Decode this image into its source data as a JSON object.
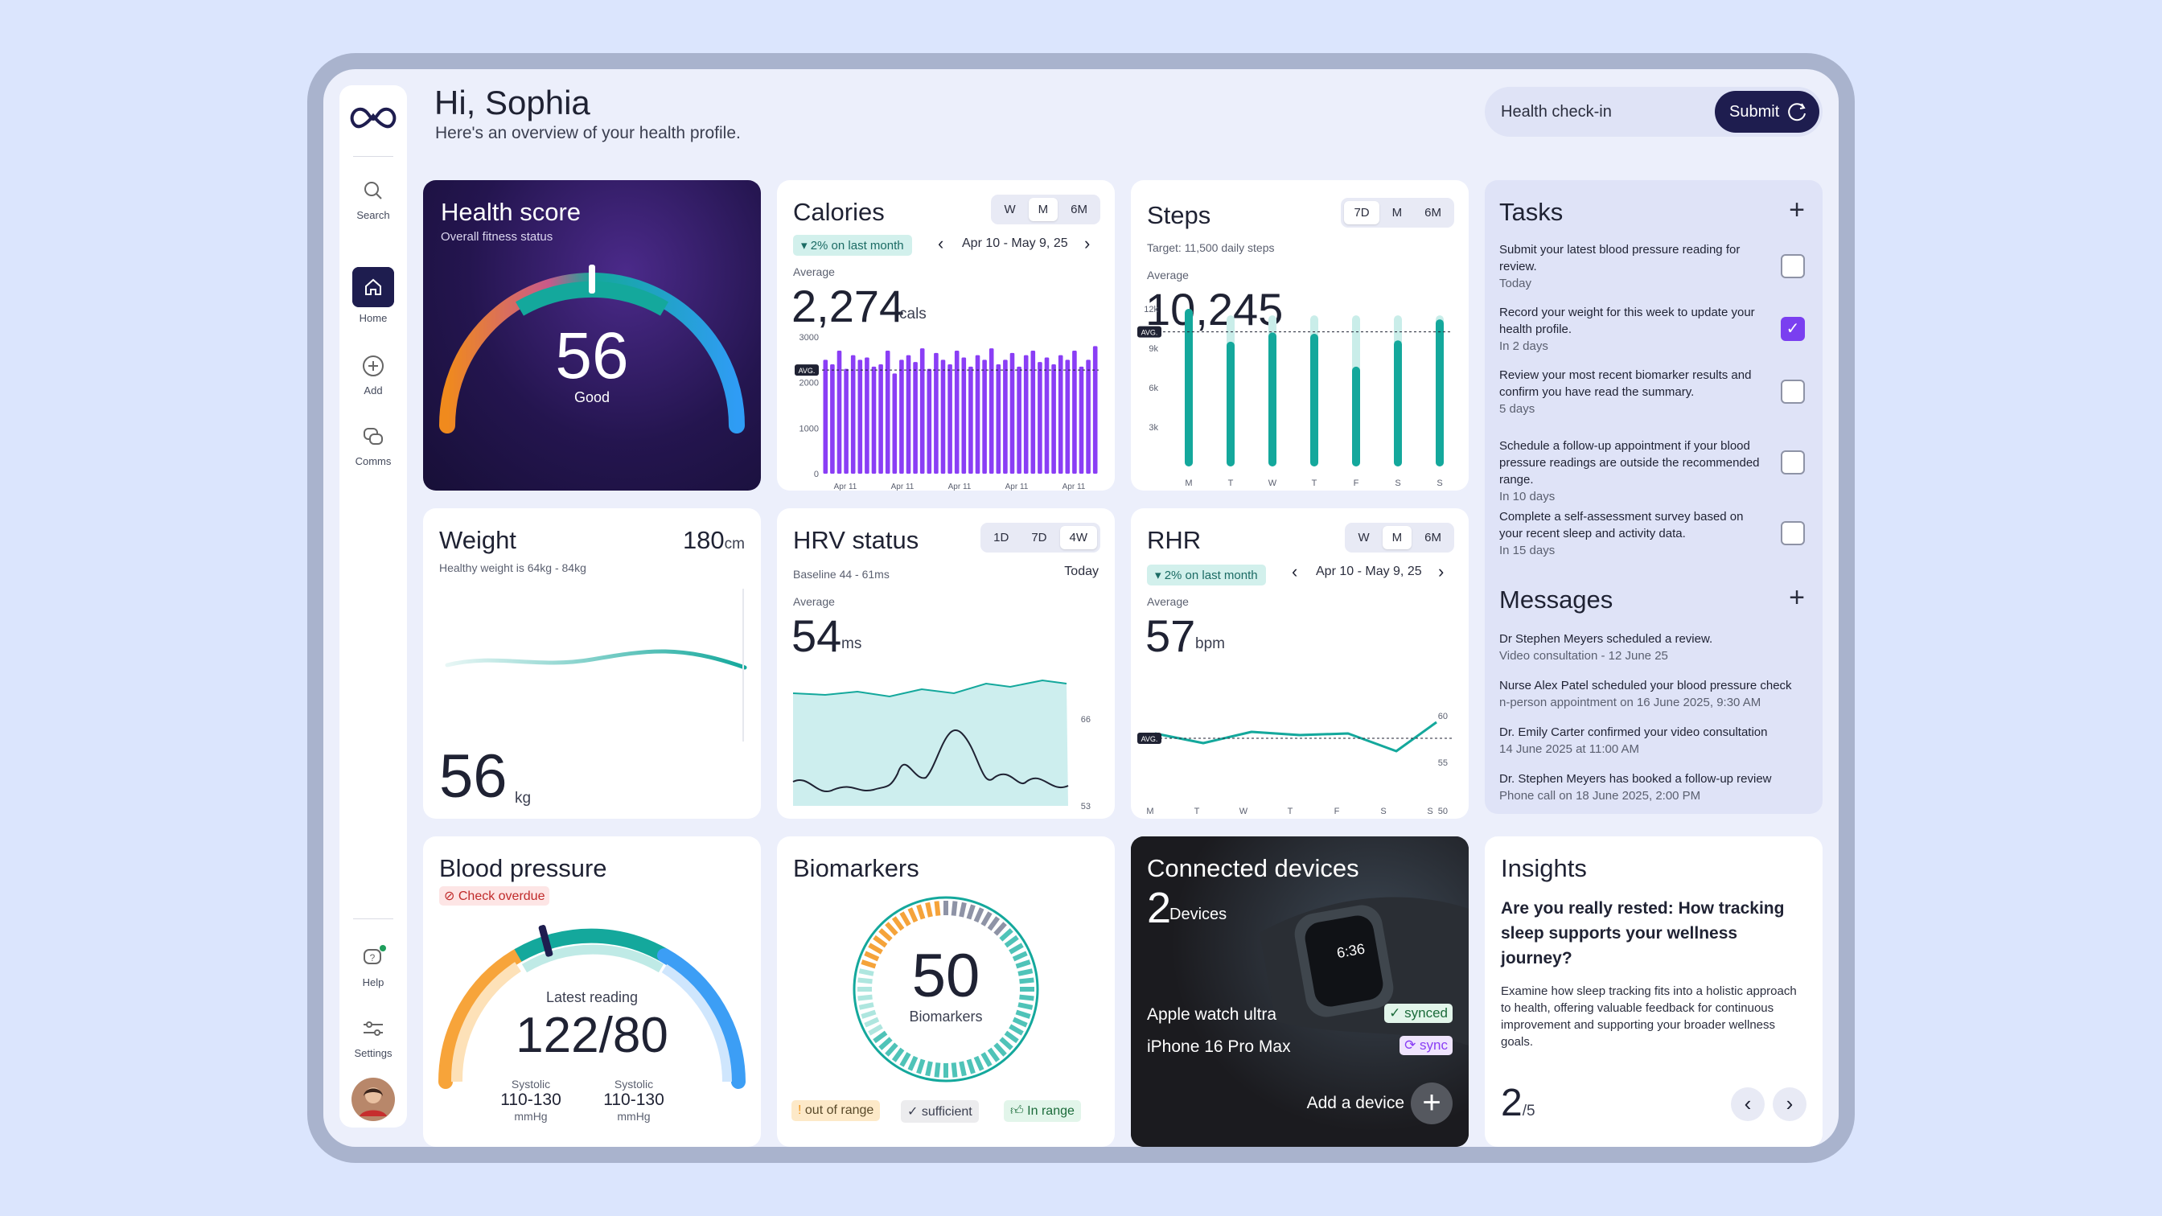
{
  "header": {
    "greeting": "Hi, Sophia",
    "subtitle": "Here's an overview of your health profile.",
    "checkin_label": "Health check-in",
    "submit_label": "Submit"
  },
  "sidebar": {
    "items": [
      {
        "label": "Search"
      },
      {
        "label": "Home"
      },
      {
        "label": "Add"
      },
      {
        "label": "Comms"
      }
    ],
    "bottom": [
      {
        "label": "Help"
      },
      {
        "label": "Settings"
      }
    ]
  },
  "health_score": {
    "title": "Health score",
    "subtitle": "Overall fitness status",
    "value": "56",
    "label": "Good",
    "level": 0.56
  },
  "calories": {
    "title": "Calories",
    "tabs": [
      "W",
      "M",
      "6M"
    ],
    "active": "M",
    "badge": "2% on last month",
    "range": "Apr 10 - May 9, 25",
    "avg_label": "Average",
    "value": "2,274",
    "unit": "cals",
    "y_ticks": [
      "3000",
      "2000",
      "1000",
      "0"
    ],
    "x_ticks": [
      "Apr 11",
      "Apr 11",
      "Apr 11",
      "Apr 11",
      "Apr 11"
    ],
    "avg_tag": "AVG."
  },
  "steps": {
    "title": "Steps",
    "tabs": [
      "7D",
      "M",
      "6M"
    ],
    "active": "7D",
    "target": "Target: 11,500 daily steps",
    "avg_label": "Average",
    "value": "10,245",
    "y_ticks": [
      "12k",
      "9k",
      "6k",
      "3k"
    ],
    "days": [
      "M",
      "T",
      "W",
      "T",
      "F",
      "S",
      "S"
    ],
    "avg_tag": "AVG."
  },
  "tasks": {
    "title": "Tasks",
    "items": [
      {
        "text": "Submit your latest blood pressure reading for review.",
        "due": "Today",
        "done": false
      },
      {
        "text": "Record your weight for this week to update your health profile.",
        "due": "In 2 days",
        "done": true
      },
      {
        "text": "Review your most recent biomarker results and confirm you have read the summary.",
        "due": "5 days",
        "done": false
      },
      {
        "text": "Schedule a follow-up appointment if your blood pressure readings are outside the recommended range.",
        "due": "In 10 days",
        "done": false
      },
      {
        "text": "Complete a self-assessment survey based on your recent sleep and activity data.",
        "due": "In 15 days",
        "done": false
      }
    ]
  },
  "messages": {
    "title": "Messages",
    "items": [
      {
        "text": "Dr Stephen Meyers scheduled a review.",
        "meta": "Video consultation - 12 June 25"
      },
      {
        "text": "Nurse Alex Patel scheduled your blood pressure check",
        "meta": "n-person appointment on 16 June 2025, 9:30 AM"
      },
      {
        "text": "Dr. Emily Carter confirmed your video consultation",
        "meta": "14 June 2025 at 11:00 AM"
      },
      {
        "text": "Dr. Stephen Meyers has booked a follow-up review",
        "meta": "Phone call on 18 June 2025, 2:00 PM"
      }
    ]
  },
  "weight": {
    "title": "Weight",
    "height": "180",
    "height_unit": "cm",
    "note": "Healthy weight is 64kg - 84kg",
    "value": "56",
    "unit": "kg"
  },
  "hrv": {
    "title": "HRV status",
    "tabs": [
      "1D",
      "7D",
      "4W"
    ],
    "active": "4W",
    "today": "Today",
    "baseline": "Baseline 44 - 61ms",
    "avg_label": "Average",
    "value": "54",
    "unit": "ms",
    "y_top": "66",
    "y_bottom": "53"
  },
  "rhr": {
    "title": "RHR",
    "tabs": [
      "W",
      "M",
      "6M"
    ],
    "active": "M",
    "badge": "2% on last month",
    "range": "Apr 10 - May 9, 25",
    "avg_label": "Average",
    "value": "57",
    "unit": "bpm",
    "y_ticks": [
      "60",
      "55",
      "50"
    ],
    "days": [
      "M",
      "T",
      "W",
      "T",
      "F",
      "S",
      "S"
    ],
    "avg_tag": "AVG."
  },
  "blood_pressure": {
    "title": "Blood pressure",
    "alert": "Check overdue",
    "reading_label": "Latest reading",
    "reading": "122/80",
    "cols": [
      {
        "label": "Systolic",
        "range": "110-130",
        "unit": "mmHg"
      },
      {
        "label": "Systolic",
        "range": "110-130",
        "unit": "mmHg"
      }
    ]
  },
  "biomarkers": {
    "title": "Biomarkers",
    "value": "50",
    "label": "Biomarkers",
    "legend": [
      "out of range",
      "sufficient",
      "In range"
    ]
  },
  "devices": {
    "title": "Connected devices",
    "count": "2",
    "count_label": "Devices",
    "list": [
      {
        "name": "Apple watch ultra",
        "status": "synced"
      },
      {
        "name": "iPhone 16 Pro Max",
        "status": "sync"
      }
    ],
    "add_label": "Add a device",
    "watch_time": "6:36"
  },
  "insights": {
    "title": "Insights",
    "headline": "Are you really rested: How tracking sleep supports your wellness journey?",
    "body": "Examine how sleep tracking fits into a holistic approach to health, offering valuable feedback for continuous improvement and supporting your broader wellness goals.",
    "page": "2",
    "total": "/5"
  },
  "colors": {
    "accent": "#1e1d4f",
    "teal": "#14a89c",
    "purple": "#8a3ef5",
    "danger": "#d33a3a"
  }
}
